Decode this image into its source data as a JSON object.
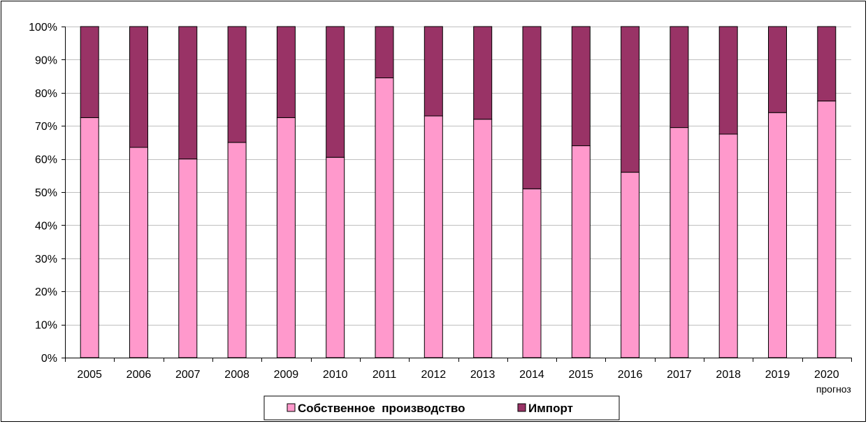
{
  "chart_data": {
    "type": "bar",
    "stacked": true,
    "percent_scale": true,
    "categories": [
      "2005",
      "2006",
      "2007",
      "2008",
      "2009",
      "2010",
      "2011",
      "2012",
      "2013",
      "2014",
      "2015",
      "2016",
      "2017",
      "2018",
      "2019",
      "2020"
    ],
    "category_sublabels": {
      "2020": "прогноз"
    },
    "series": [
      {
        "name": "Собственное  производство",
        "color": "#ff99cc",
        "values": [
          72.5,
          63.5,
          60,
          65,
          72.5,
          60.5,
          84.5,
          73,
          72,
          51,
          64,
          56,
          69.5,
          67.5,
          74,
          77.5
        ]
      },
      {
        "name": "Импорт",
        "color": "#993366",
        "values": [
          27.5,
          36.5,
          40,
          35,
          27.5,
          39.5,
          15.5,
          27,
          28,
          49,
          36,
          44,
          30.5,
          32.5,
          26,
          22.5
        ]
      }
    ],
    "ylim": [
      0,
      100
    ],
    "yticks": [
      "0%",
      "10%",
      "20%",
      "30%",
      "40%",
      "50%",
      "60%",
      "70%",
      "80%",
      "90%",
      "100%"
    ],
    "grid": true,
    "legend_position": "bottom"
  }
}
